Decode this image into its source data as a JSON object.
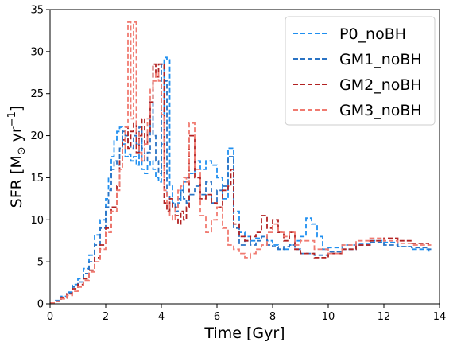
{
  "chart_data": {
    "type": "line",
    "xlabel": "Time [Gyr]",
    "ylabel_main": "SFR [M",
    "ylabel_sun": "⊙",
    "ylabel_unit": " yr",
    "ylabel_exp": "−1",
    "ylabel_close": "]",
    "xlim": [
      0,
      14
    ],
    "ylim": [
      0,
      35
    ],
    "xticks": [
      0,
      2,
      4,
      6,
      8,
      10,
      12,
      14
    ],
    "yticks": [
      0,
      5,
      10,
      15,
      20,
      25,
      30,
      35
    ],
    "legend_position": "top-right",
    "grid": false,
    "series": [
      {
        "name": "P0_noBH",
        "color": "#1f8ff0",
        "x": [
          0,
          0.2,
          0.4,
          0.6,
          0.8,
          1.0,
          1.2,
          1.4,
          1.6,
          1.8,
          2.0,
          2.1,
          2.2,
          2.3,
          2.4,
          2.5,
          2.6,
          2.7,
          2.8,
          2.9,
          3.0,
          3.1,
          3.2,
          3.3,
          3.4,
          3.5,
          3.6,
          3.7,
          3.8,
          3.9,
          4.0,
          4.1,
          4.2,
          4.3,
          4.4,
          4.5,
          4.6,
          4.7,
          4.8,
          4.9,
          5.0,
          5.2,
          5.4,
          5.6,
          5.8,
          6.0,
          6.2,
          6.4,
          6.6,
          6.8,
          7.0,
          7.2,
          7.4,
          7.6,
          7.8,
          8.0,
          8.2,
          8.4,
          8.6,
          8.8,
          9.0,
          9.2,
          9.4,
          9.6,
          9.8,
          10.0,
          10.5,
          11.0,
          11.5,
          12.0,
          12.5,
          13.0,
          13.6
        ],
        "y": [
          0.1,
          0.4,
          0.9,
          1.4,
          2.3,
          3.0,
          4.2,
          5.8,
          8.2,
          10.0,
          12.5,
          15.0,
          17.5,
          19.5,
          20.5,
          21.0,
          19.0,
          17.5,
          17.8,
          17.0,
          17.5,
          16.5,
          19.5,
          16.0,
          15.5,
          16.5,
          17.0,
          16.0,
          15.0,
          14.5,
          19.0,
          29.3,
          29.0,
          14.0,
          12.0,
          11.5,
          12.0,
          13.5,
          14.5,
          15.0,
          15.5,
          17.0,
          16.0,
          17.0,
          16.5,
          15.0,
          12.5,
          18.5,
          11.0,
          8.5,
          8.0,
          7.5,
          7.8,
          8.0,
          7.5,
          7.0,
          6.5,
          6.5,
          7.0,
          7.5,
          8.0,
          10.2,
          9.5,
          8.0,
          6.5,
          6.7,
          7.0,
          7.2,
          7.5,
          7.3,
          6.8,
          6.5,
          6.3
        ]
      },
      {
        "name": "GM1_noBH",
        "color": "#2a73c4",
        "x": [
          0,
          0.2,
          0.4,
          0.6,
          0.8,
          1.0,
          1.2,
          1.4,
          1.6,
          1.8,
          2.0,
          2.1,
          2.2,
          2.3,
          2.4,
          2.5,
          2.6,
          2.7,
          2.8,
          2.9,
          3.0,
          3.1,
          3.2,
          3.3,
          3.4,
          3.5,
          3.6,
          3.7,
          3.8,
          3.9,
          4.0,
          4.1,
          4.2,
          4.3,
          4.4,
          4.5,
          4.6,
          4.7,
          4.8,
          4.9,
          5.0,
          5.2,
          5.4,
          5.6,
          5.8,
          6.0,
          6.2,
          6.4,
          6.6,
          6.8,
          7.0,
          7.2,
          7.4,
          7.6,
          7.8,
          8.0,
          8.2,
          8.4,
          8.6,
          8.8,
          9.0,
          9.5,
          10.0,
          10.5,
          11.0,
          11.5,
          12.0,
          12.5,
          13.0,
          13.6
        ],
        "y": [
          0.1,
          0.3,
          0.8,
          1.3,
          2.0,
          2.6,
          3.6,
          5.0,
          7.0,
          9.0,
          11.5,
          13.5,
          16.0,
          17.0,
          16.5,
          18.5,
          20.5,
          20.0,
          19.0,
          18.5,
          20.0,
          19.0,
          21.0,
          18.5,
          17.0,
          18.0,
          24.0,
          20.0,
          17.0,
          15.5,
          28.5,
          26.5,
          13.0,
          11.5,
          12.0,
          11.0,
          12.5,
          13.5,
          12.5,
          12.0,
          13.0,
          14.0,
          13.0,
          14.5,
          12.0,
          13.5,
          14.0,
          17.5,
          9.0,
          7.0,
          7.5,
          7.0,
          7.5,
          8.0,
          7.0,
          6.8,
          6.5,
          6.8,
          7.0,
          6.5,
          6.0,
          5.8,
          6.2,
          6.5,
          7.0,
          7.3,
          7.0,
          6.8,
          6.7,
          6.5
        ]
      },
      {
        "name": "GM2_noBH",
        "color": "#b22222",
        "x": [
          0,
          0.2,
          0.4,
          0.6,
          0.8,
          1.0,
          1.2,
          1.4,
          1.6,
          1.8,
          2.0,
          2.2,
          2.4,
          2.5,
          2.6,
          2.7,
          2.8,
          2.9,
          3.0,
          3.1,
          3.2,
          3.3,
          3.4,
          3.5,
          3.6,
          3.7,
          3.8,
          3.9,
          4.0,
          4.1,
          4.2,
          4.3,
          4.4,
          4.5,
          4.6,
          4.7,
          4.8,
          4.9,
          5.0,
          5.2,
          5.4,
          5.6,
          5.8,
          6.0,
          6.2,
          6.4,
          6.5,
          6.6,
          6.8,
          7.0,
          7.2,
          7.4,
          7.6,
          7.8,
          8.0,
          8.2,
          8.4,
          8.6,
          8.8,
          9.0,
          9.5,
          10.0,
          10.5,
          11.0,
          11.5,
          12.0,
          12.5,
          13.0,
          13.6
        ],
        "y": [
          0.1,
          0.3,
          0.7,
          1.2,
          1.8,
          2.3,
          3.0,
          4.0,
          5.5,
          7.0,
          9.0,
          11.5,
          14.0,
          17.0,
          19.5,
          21.0,
          18.5,
          20.5,
          21.5,
          18.0,
          20.0,
          22.0,
          19.0,
          20.5,
          24.0,
          28.5,
          27.0,
          28.5,
          28.5,
          12.0,
          11.0,
          12.5,
          11.5,
          10.5,
          9.5,
          11.0,
          10.0,
          11.5,
          20.0,
          15.0,
          12.5,
          13.0,
          12.0,
          11.5,
          13.5,
          14.0,
          16.0,
          9.5,
          8.0,
          7.5,
          8.0,
          8.5,
          10.5,
          9.0,
          10.0,
          8.5,
          7.5,
          8.5,
          6.5,
          6.0,
          5.5,
          6.0,
          6.5,
          7.0,
          7.5,
          7.8,
          7.5,
          7.2,
          7.0
        ]
      },
      {
        "name": "GM3_noBH",
        "color": "#f07a70",
        "x": [
          0,
          0.2,
          0.4,
          0.6,
          0.8,
          1.0,
          1.2,
          1.4,
          1.6,
          1.8,
          2.0,
          2.2,
          2.4,
          2.5,
          2.6,
          2.7,
          2.8,
          2.9,
          3.0,
          3.1,
          3.2,
          3.3,
          3.4,
          3.5,
          3.6,
          3.7,
          3.8,
          3.9,
          4.0,
          4.1,
          4.2,
          4.3,
          4.4,
          4.5,
          4.6,
          4.7,
          4.8,
          4.9,
          5.0,
          5.2,
          5.4,
          5.6,
          5.8,
          6.0,
          6.2,
          6.4,
          6.6,
          6.8,
          7.0,
          7.2,
          7.4,
          7.6,
          7.8,
          8.0,
          8.2,
          8.4,
          8.6,
          8.8,
          9.0,
          9.5,
          10.0,
          10.5,
          11.0,
          11.5,
          12.0,
          12.5,
          13.0,
          13.6
        ],
        "y": [
          0.1,
          0.3,
          0.6,
          1.0,
          1.5,
          2.0,
          2.8,
          3.8,
          5.0,
          6.5,
          8.5,
          11.0,
          13.5,
          16.0,
          18.5,
          21.0,
          33.5,
          22.0,
          33.5,
          20.5,
          18.0,
          17.0,
          19.0,
          22.0,
          25.5,
          26.5,
          27.5,
          26.5,
          22.5,
          13.5,
          12.0,
          10.5,
          10.0,
          11.5,
          13.5,
          14.0,
          15.0,
          14.5,
          21.5,
          16.0,
          10.5,
          8.5,
          10.0,
          11.5,
          9.0,
          7.0,
          6.5,
          6.0,
          5.5,
          6.0,
          6.5,
          7.0,
          8.5,
          9.5,
          8.5,
          8.0,
          8.5,
          7.0,
          7.5,
          6.5,
          6.0,
          7.0,
          7.5,
          7.8,
          7.5,
          7.2,
          7.0,
          7.0
        ]
      }
    ]
  }
}
